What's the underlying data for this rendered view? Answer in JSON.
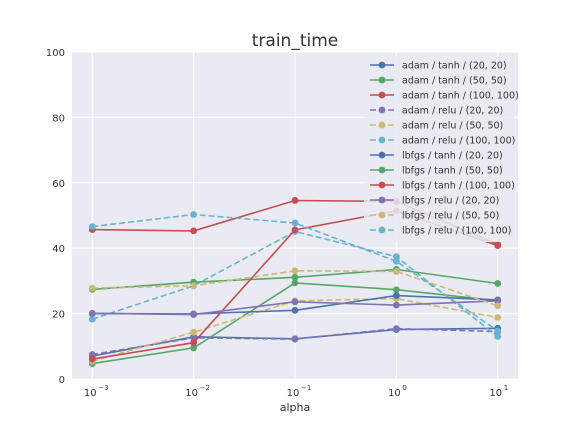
{
  "chart_data": {
    "type": "line",
    "title": "train_time",
    "xlabel": "alpha",
    "ylabel": "",
    "x_scale": "log",
    "x": [
      0.001,
      0.01,
      0.1,
      1,
      10
    ],
    "x_tick_labels": [
      {
        "base": "10",
        "exp": "−3"
      },
      {
        "base": "10",
        "exp": "−2"
      },
      {
        "base": "10",
        "exp": "−1"
      },
      {
        "base": "10",
        "exp": "0"
      },
      {
        "base": "10",
        "exp": "1"
      }
    ],
    "ylim": [
      0,
      100
    ],
    "y_ticks": [
      0,
      20,
      40,
      60,
      80,
      100
    ],
    "grid": true,
    "legend_position": "top-right",
    "colors": {
      "blue": "#4C72B0",
      "green": "#55A868",
      "red": "#C44E52",
      "purple": "#8172B2",
      "yellow": "#CCB974",
      "cyan": "#64B5CD",
      "background": "#EAEAF2",
      "grid": "#FFFFFF"
    },
    "series": [
      {
        "name": "adam / tanh / (20, 20)",
        "color": "blue",
        "dashed": false,
        "values": [
          7.0,
          12.9,
          12.3,
          15.1,
          15.5
        ]
      },
      {
        "name": "adam / tanh / (50, 50)",
        "color": "green",
        "dashed": false,
        "values": [
          4.7,
          9.5,
          29.4,
          27.3,
          23.9
        ]
      },
      {
        "name": "adam / tanh / (100, 100)",
        "color": "red",
        "dashed": false,
        "values": [
          45.7,
          45.3,
          54.6,
          54.3,
          41.2
        ]
      },
      {
        "name": "adam / relu / (20, 20)",
        "color": "purple",
        "dashed": true,
        "values": [
          7.5,
          12.6,
          12.2,
          15.4,
          14.5
        ]
      },
      {
        "name": "adam / relu / (50, 50)",
        "color": "yellow",
        "dashed": true,
        "values": [
          5.4,
          14.3,
          23.9,
          24.6,
          18.8
        ]
      },
      {
        "name": "adam / relu / (100, 100)",
        "color": "cyan",
        "dashed": true,
        "values": [
          18.3,
          28.5,
          45.1,
          37.4,
          13.0
        ]
      },
      {
        "name": "lbfgs / tanh / (20, 20)",
        "color": "blue",
        "dashed": false,
        "values": [
          20.0,
          19.9,
          21.0,
          25.5,
          24.2
        ]
      },
      {
        "name": "lbfgs / tanh / (50, 50)",
        "color": "green",
        "dashed": false,
        "values": [
          27.4,
          29.6,
          31.1,
          33.5,
          29.2
        ]
      },
      {
        "name": "lbfgs / tanh / (100, 100)",
        "color": "red",
        "dashed": false,
        "values": [
          6.1,
          11.1,
          45.6,
          51.4,
          40.8
        ]
      },
      {
        "name": "lbfgs / relu / (20, 20)",
        "color": "purple",
        "dashed": false,
        "values": [
          20.1,
          19.7,
          23.6,
          22.6,
          23.9
        ]
      },
      {
        "name": "lbfgs / relu / (50, 50)",
        "color": "yellow",
        "dashed": true,
        "values": [
          27.8,
          28.5,
          33.1,
          32.9,
          22.4
        ]
      },
      {
        "name": "lbfgs / relu / (100, 100)",
        "color": "cyan",
        "dashed": true,
        "values": [
          46.6,
          50.3,
          47.7,
          36.0,
          14.7
        ]
      }
    ]
  }
}
